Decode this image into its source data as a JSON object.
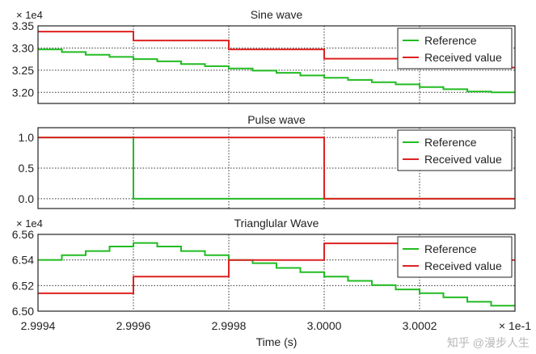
{
  "colors": {
    "reference": "#22bb22",
    "received": "#dd2222",
    "grid": "#333333",
    "frame": "#222222"
  },
  "xaxis": {
    "label": "Time (s)",
    "multiplier": "× 1e-1",
    "range": [
      2.9994,
      3.0004
    ],
    "ticks": [
      2.9994,
      2.9996,
      2.9998,
      3.0,
      3.0002
    ],
    "tick_labels": [
      "2.9994",
      "2.9996",
      "2.9998",
      "3.0000",
      "3.0002"
    ]
  },
  "watermark": "知乎 @漫步人生",
  "chart_data": [
    {
      "type": "line",
      "step": true,
      "title": "Sine wave",
      "multiplier": "× 1e4",
      "ylim": [
        3.175,
        3.35
      ],
      "yticks": [
        3.2,
        3.25,
        3.3,
        3.35
      ],
      "ytick_labels": [
        "3.20",
        "3.25",
        "3.30",
        "3.35"
      ],
      "grid": true,
      "legend": "top-right",
      "series": [
        {
          "name": "Reference",
          "x": [
            2.9994,
            2.99945,
            2.9995,
            2.99955,
            2.9996,
            2.99965,
            2.9997,
            2.99975,
            2.9998,
            2.99985,
            2.9999,
            2.99995,
            3.0,
            3.00005,
            3.0001,
            3.00015,
            3.0002,
            3.00025,
            3.0003,
            3.00035
          ],
          "y": [
            3.297,
            3.291,
            3.285,
            3.28,
            3.275,
            3.27,
            3.264,
            3.259,
            3.254,
            3.249,
            3.244,
            3.238,
            3.233,
            3.228,
            3.223,
            3.218,
            3.212,
            3.207,
            3.202,
            3.2
          ]
        },
        {
          "name": "Received value",
          "x": [
            2.9994,
            2.9996,
            2.9998,
            3.0,
            3.0002
          ],
          "y": [
            3.337,
            3.317,
            3.297,
            3.276,
            3.256
          ]
        }
      ]
    },
    {
      "type": "line",
      "step": true,
      "title": "Pulse wave",
      "multiplier": "",
      "ylim": [
        -0.16,
        1.16
      ],
      "yticks": [
        0.0,
        0.5,
        1.0
      ],
      "ytick_labels": [
        "0.0",
        "0.5",
        "1.0"
      ],
      "grid": true,
      "legend": "top-right",
      "series": [
        {
          "name": "Reference",
          "x": [
            2.9994,
            2.9996
          ],
          "y": [
            1,
            0
          ]
        },
        {
          "name": "Received value",
          "x": [
            2.9994,
            3.0
          ],
          "y": [
            1,
            0
          ]
        }
      ]
    },
    {
      "type": "line",
      "step": true,
      "title": "Trianglular Wave",
      "multiplier": "× 1e4",
      "ylim": [
        6.5,
        6.56
      ],
      "yticks": [
        6.5,
        6.52,
        6.54,
        6.56
      ],
      "ytick_labels": [
        "6.50",
        "6.52",
        "6.54",
        "6.56"
      ],
      "grid": true,
      "legend": "top-right",
      "series": [
        {
          "name": "Reference",
          "x": [
            2.9994,
            2.99945,
            2.9995,
            2.99955,
            2.9996,
            2.99965,
            2.9997,
            2.99975,
            2.9998,
            2.99985,
            2.9999,
            2.99995,
            3.0,
            3.00005,
            3.0001,
            3.00015,
            3.0002,
            3.00025,
            3.0003,
            3.00035
          ],
          "y": [
            6.54,
            6.5437,
            6.547,
            6.5505,
            6.5533,
            6.5505,
            6.547,
            6.5437,
            6.54,
            6.5375,
            6.5338,
            6.5305,
            6.527,
            6.5237,
            6.5204,
            6.517,
            6.514,
            6.5108,
            6.5073,
            6.5042
          ]
        },
        {
          "name": "Received value",
          "x": [
            2.9994,
            2.9996,
            2.9998,
            3.0,
            3.0002
          ],
          "y": [
            6.514,
            6.527,
            6.54,
            6.553,
            6.54
          ]
        }
      ]
    }
  ]
}
